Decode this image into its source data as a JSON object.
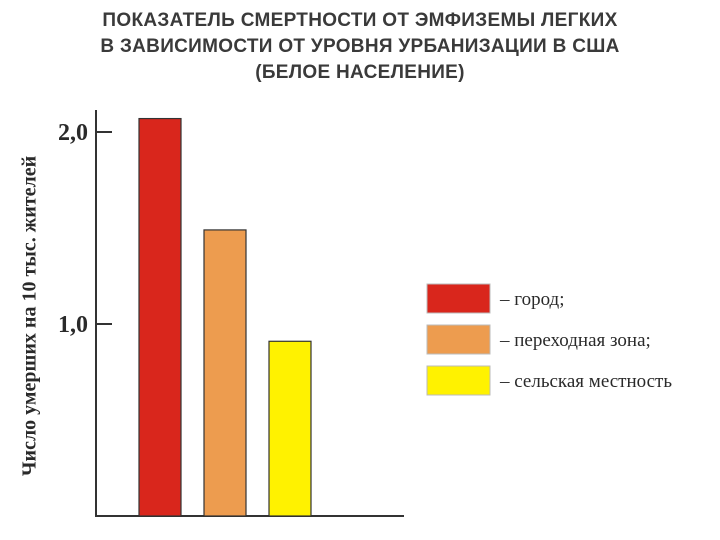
{
  "chart_data": {
    "type": "bar",
    "title_lines": [
      "ПОКАЗАТЕЛЬ СМЕРТНОСТИ ОТ ЭМФИЗЕМЫ ЛЕГКИХ",
      "В ЗАВИСИМОСТИ ОТ УРОВНЯ УРБАНИЗАЦИИ В США",
      "(БЕЛОЕ НАСЕЛЕНИЕ)"
    ],
    "ylabel": "Число умерших на 10 тыс. жителей",
    "ylim": [
      0,
      2.1
    ],
    "yticks": [
      {
        "value": 1.0,
        "label": "1,0"
      },
      {
        "value": 2.0,
        "label": "2,0"
      }
    ],
    "categories": [
      "город",
      "переходная зона",
      "сельская местность"
    ],
    "values": [
      2.07,
      1.49,
      0.91
    ],
    "colors": [
      "#d9261c",
      "#ed9c4f",
      "#fff200"
    ],
    "legend": [
      {
        "label": "– город;",
        "color": "#d9261c"
      },
      {
        "label": "– переходная зона;",
        "color": "#ed9c4f"
      },
      {
        "label": "– сельская местность",
        "color": "#fff200"
      }
    ],
    "legend_position": "right",
    "grid": false
  }
}
